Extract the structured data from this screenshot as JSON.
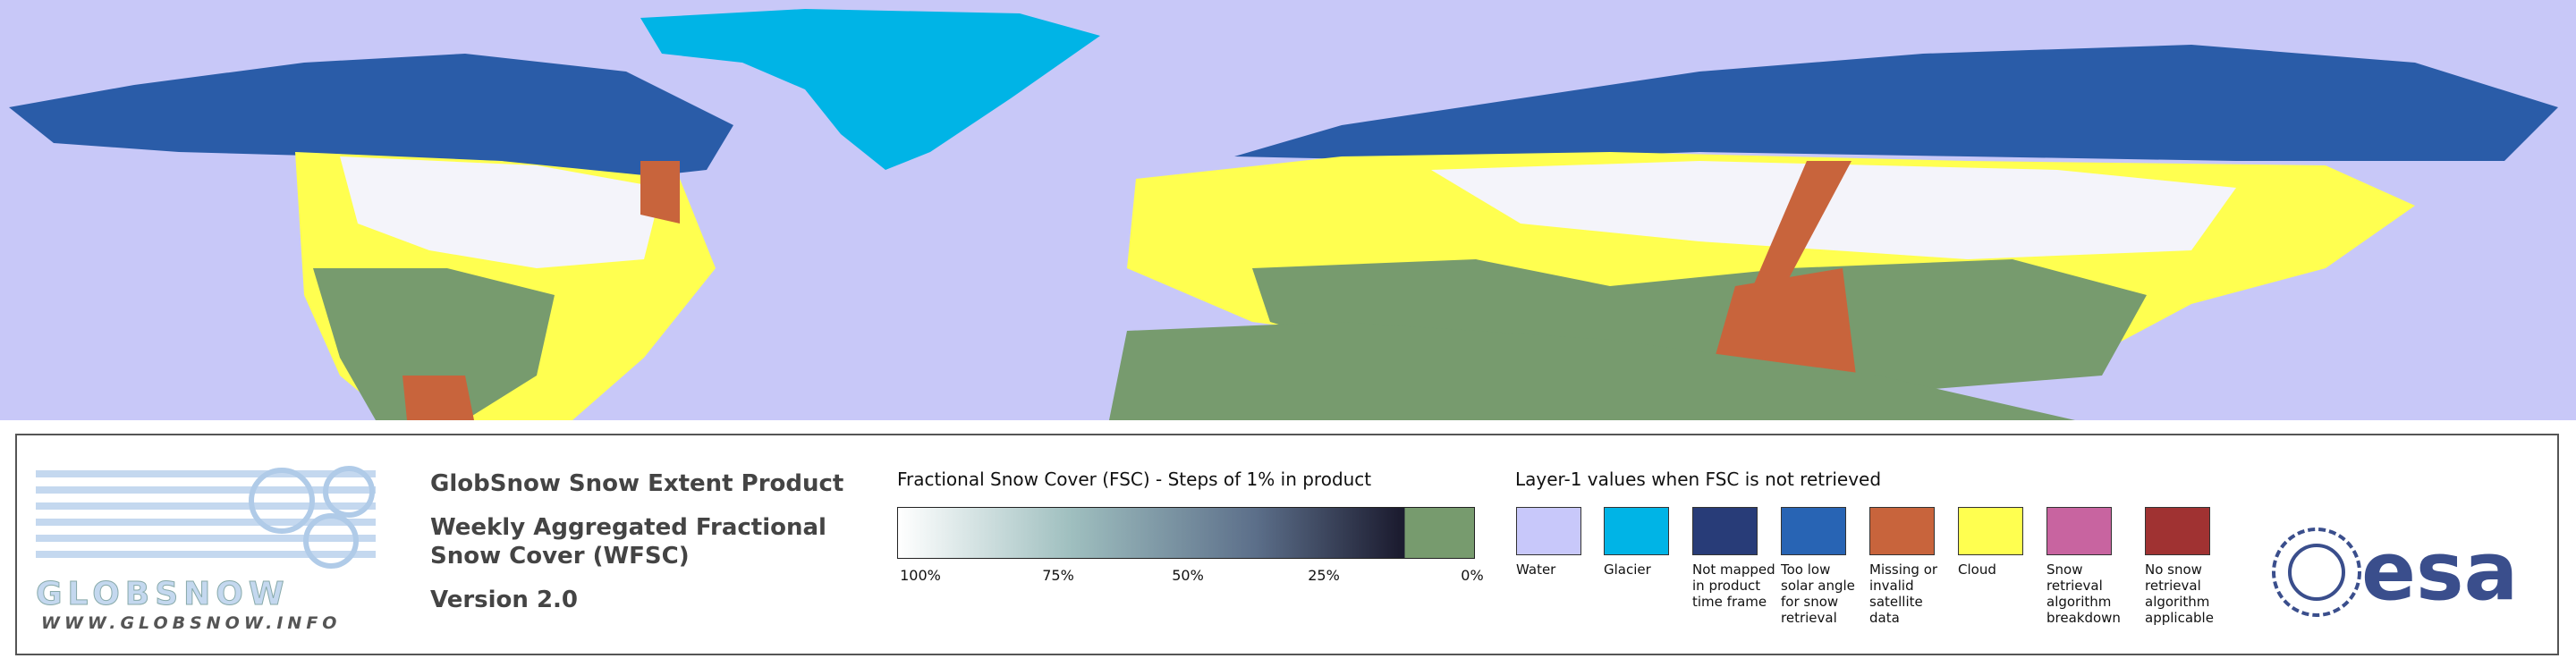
{
  "logo": {
    "name": "GLOBSNOW",
    "url": "WWW.GLOBSNOW.INFO"
  },
  "header": {
    "title": "GlobSnow Snow Extent Product",
    "subtitle": "Weekly Aggregated Fractional Snow Cover (WFSC)",
    "version": "Version 2.0"
  },
  "fsc_legend": {
    "title": "Fractional Snow Cover (FSC) - Steps of 1% in product",
    "ticks": [
      "100%",
      "75%",
      "50%",
      "25%",
      "0%"
    ]
  },
  "layer1_legend": {
    "title": "Layer-1 values when FSC is not retrieved",
    "items": [
      {
        "label": "Water",
        "color": "#c8c8fa"
      },
      {
        "label": "Glacier",
        "color": "#00b4e6"
      },
      {
        "label": "Not mapped in product time frame",
        "color": "#283c78"
      },
      {
        "label": "Too low solar angle for snow retrieval",
        "color": "#2864b4"
      },
      {
        "label": "Missing or invalid satellite data",
        "color": "#c8643c"
      },
      {
        "label": "Cloud",
        "color": "#ffff50"
      },
      {
        "label": "Snow retrieval algorithm breakdown",
        "color": "#c864a0"
      },
      {
        "label": "No snow retrieval algorithm applicable",
        "color": "#a03232"
      }
    ]
  },
  "agency": "esa"
}
